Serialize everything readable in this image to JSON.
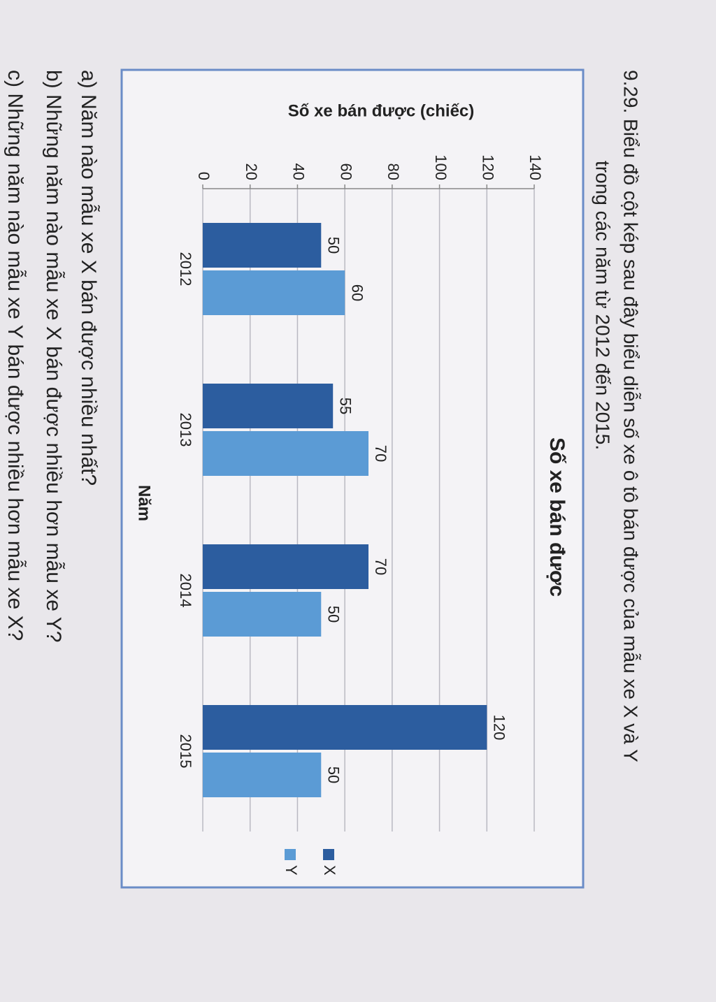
{
  "problem": {
    "lines": [
      "9.29. Biểu đồ cột kép sau đây biểu diễn số xe ô tô bán được của mẫu xe X và Y",
      "trong các năm từ 2012 đến 2015."
    ]
  },
  "chart_data": {
    "type": "bar",
    "title": "Số xe bán được",
    "y_label": "Số xe bán được (chiếc)",
    "x_label": "Năm",
    "categories": [
      "2012",
      "2013",
      "2014",
      "2015"
    ],
    "series": [
      {
        "name": "X",
        "color": "#2c5d9f",
        "values": [
          50,
          55,
          70,
          120
        ]
      },
      {
        "name": "Y",
        "color": "#5b9bd5",
        "values": [
          60,
          70,
          50,
          50
        ]
      }
    ],
    "ylim": [
      0,
      140
    ],
    "yticks": [
      0,
      20,
      40,
      60,
      80,
      100,
      120,
      140
    ],
    "grid": true,
    "legend": "right"
  },
  "questions": [
    "a) Năm nào mẫu xe X bán được nhiều nhất?",
    "b) Những năm nào mẫu xe X bán được nhiều hơn mẫu xe Y?",
    "c) Những năm nào mẫu xe Y bán được nhiều hơn mẫu xe X?"
  ]
}
